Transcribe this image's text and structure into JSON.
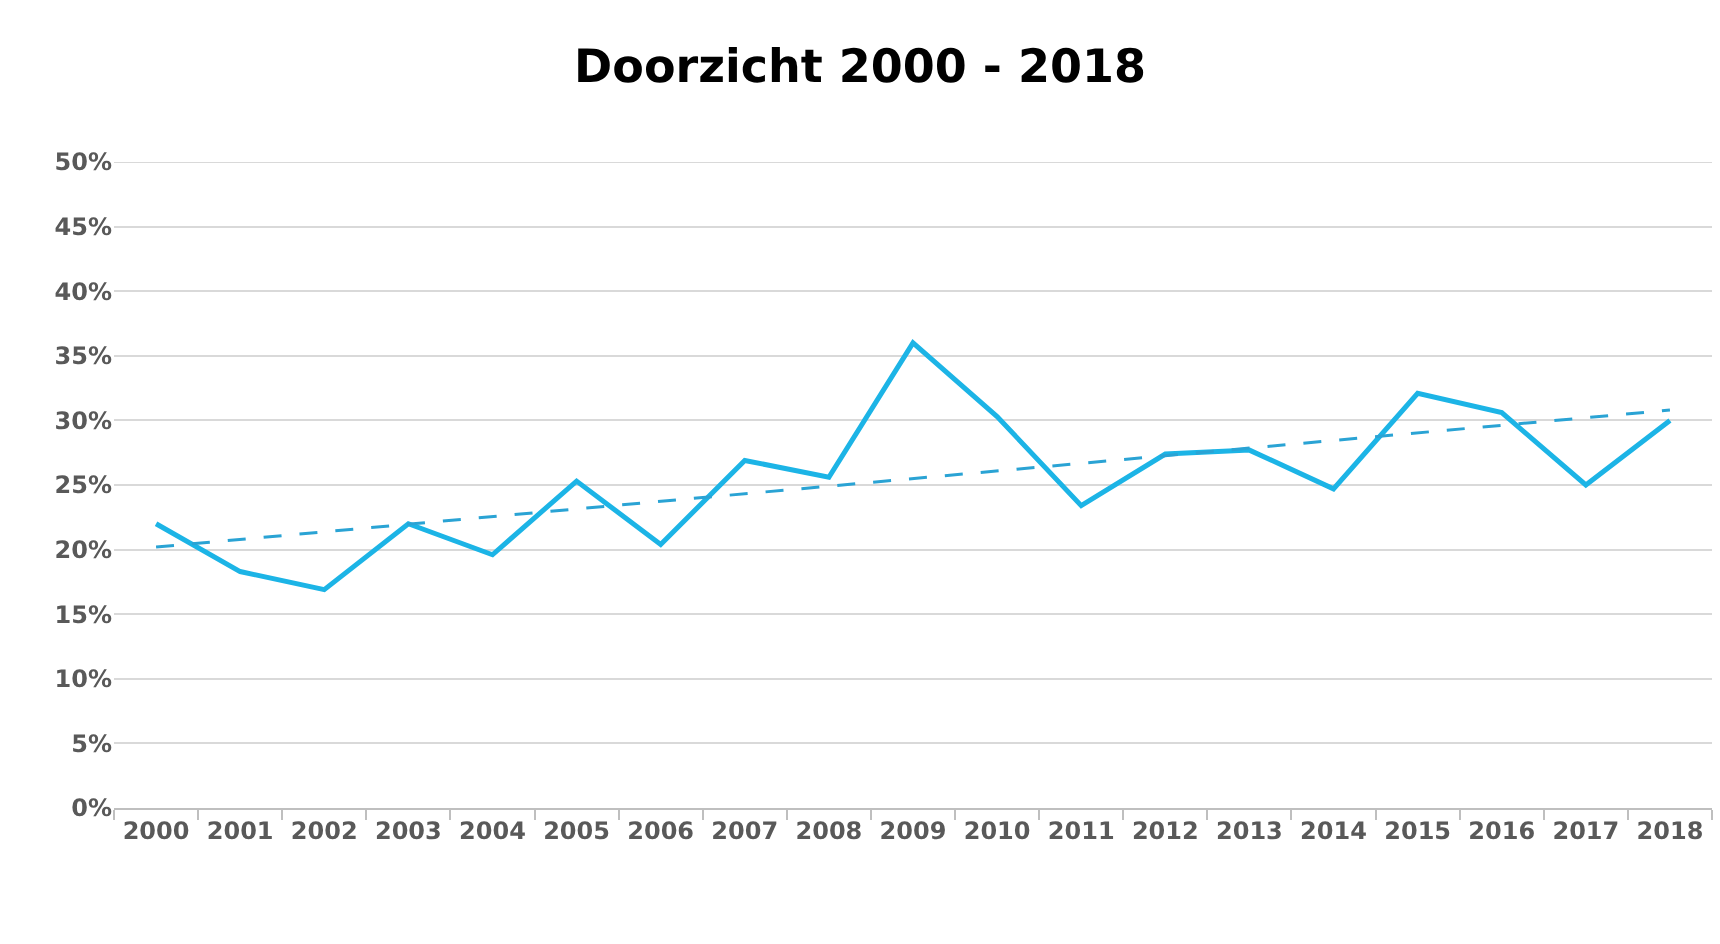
{
  "chart_data": {
    "type": "line",
    "title": "Doorzicht 2000 - 2018",
    "x": [
      2000,
      2001,
      2002,
      2003,
      2004,
      2005,
      2006,
      2007,
      2008,
      2009,
      2010,
      2011,
      2012,
      2013,
      2014,
      2015,
      2016,
      2017,
      2018
    ],
    "series": [
      {
        "color": "#1cb4e6",
        "values": [
          22.0,
          18.3,
          16.9,
          22.0,
          19.6,
          25.3,
          20.4,
          26.9,
          25.6,
          36.0,
          30.3,
          23.4,
          27.4,
          27.7,
          24.7,
          32.1,
          30.6,
          25.0,
          30.0
        ]
      },
      {
        "type": "line",
        "x": [
          2000,
          2018
        ],
        "values": [
          20.2,
          30.8
        ],
        "color": "#2aa3d4",
        "line_style": "dashed"
      }
    ],
    "xlim": [
      1999.5,
      2018.5
    ],
    "xticks": [
      2000,
      2001,
      2002,
      2003,
      2004,
      2005,
      2006,
      2007,
      2008,
      2009,
      2010,
      2011,
      2012,
      2013,
      2014,
      2015,
      2016,
      2017,
      2018
    ],
    "ylim": [
      0,
      50
    ],
    "yticks": [
      {
        "value": 0,
        "label": "0%"
      },
      {
        "value": 5,
        "label": "5%"
      },
      {
        "value": 10,
        "label": "10%"
      },
      {
        "value": 15,
        "label": "15%"
      },
      {
        "value": 20,
        "label": "20%"
      },
      {
        "value": 25,
        "label": "25%"
      },
      {
        "value": 30,
        "label": "30%"
      },
      {
        "value": 35,
        "label": "35%"
      },
      {
        "value": 40,
        "label": "40%"
      },
      {
        "value": 45,
        "label": "45%"
      },
      {
        "value": 50,
        "label": "50%"
      }
    ],
    "grid": "y",
    "line_style": "solid"
  }
}
